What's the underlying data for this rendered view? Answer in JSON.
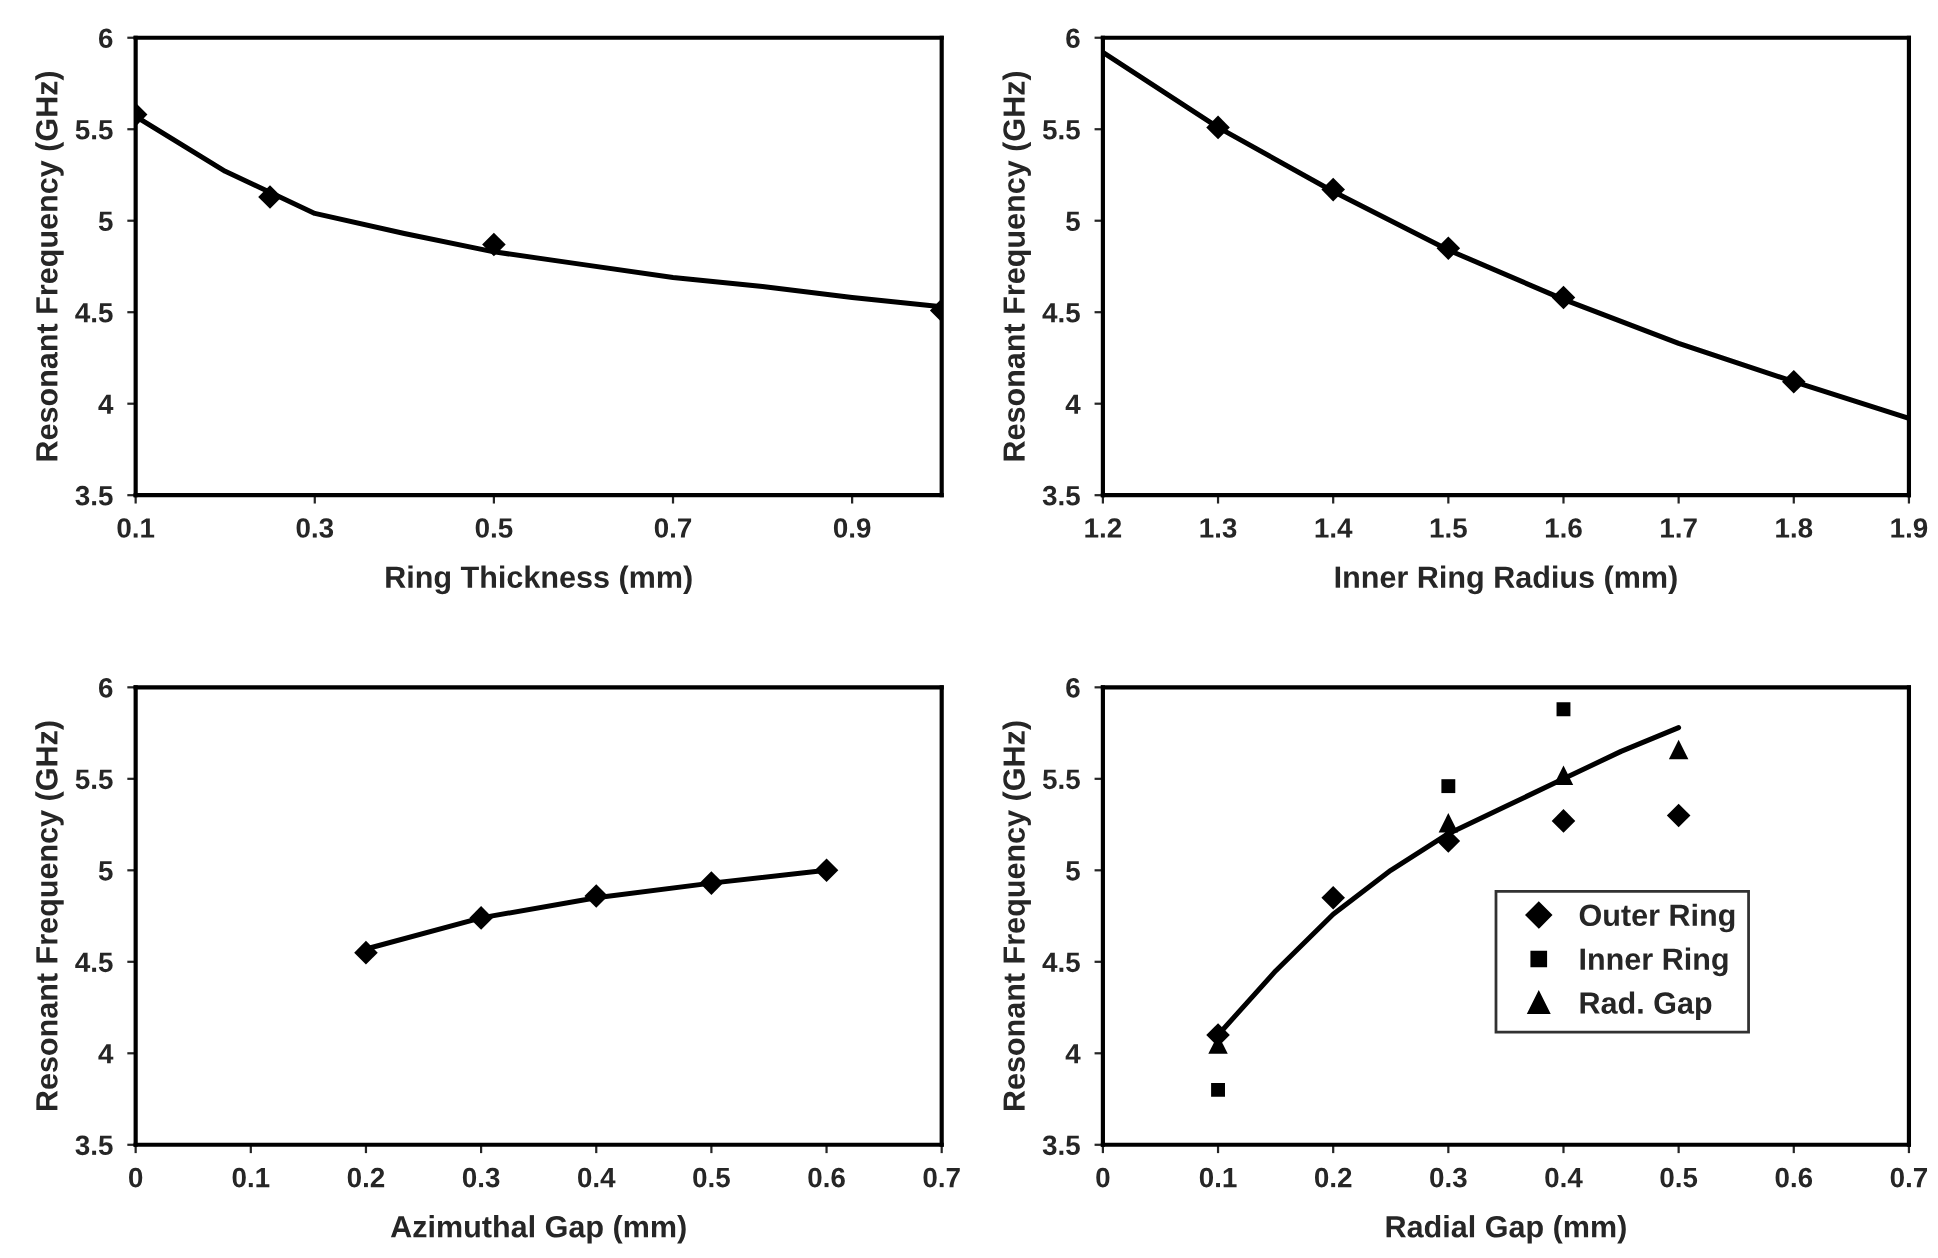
{
  "chart_data": [
    {
      "type": "scatter",
      "xlabel": "Ring Thickness (mm)",
      "ylabel": "Resonant Frequency (GHz)",
      "xlim": [
        0.1,
        1.0
      ],
      "xticks": [
        0.1,
        0.3,
        0.5,
        0.7,
        0.9
      ],
      "ylim": [
        3.5,
        6
      ],
      "yticks": [
        3.5,
        4,
        4.5,
        5,
        5.5,
        6
      ],
      "grid": false,
      "legend": false,
      "series": [
        {
          "color": "#000000",
          "marker": "diamond",
          "x": [
            0.1,
            0.25,
            0.5,
            1.0
          ],
          "values": [
            5.58,
            5.13,
            4.87,
            4.51
          ]
        },
        {
          "type": "line",
          "color": "#000000",
          "marker": "none",
          "x": [
            0.1,
            0.2,
            0.3,
            0.4,
            0.5,
            0.6,
            0.7,
            0.8,
            0.9,
            1.0
          ],
          "values": [
            5.57,
            5.27,
            5.04,
            4.93,
            4.83,
            4.76,
            4.69,
            4.64,
            4.58,
            4.53
          ]
        }
      ]
    },
    {
      "type": "scatter",
      "xlabel": "Inner Ring Radius (mm)",
      "ylabel": "Resonant Frequency (GHz)",
      "xlim": [
        1.2,
        1.9
      ],
      "xticks": [
        1.2,
        1.3,
        1.4,
        1.5,
        1.6,
        1.7,
        1.8,
        1.9
      ],
      "ylim": [
        3.5,
        6
      ],
      "yticks": [
        3.5,
        4,
        4.5,
        5,
        5.5,
        6
      ],
      "grid": false,
      "legend": false,
      "series": [
        {
          "color": "#000000",
          "marker": "diamond",
          "x": [
            1.3,
            1.4,
            1.5,
            1.6,
            1.8
          ],
          "values": [
            5.51,
            5.17,
            4.85,
            4.58,
            4.12
          ]
        },
        {
          "type": "line",
          "color": "#000000",
          "marker": "none",
          "x": [
            1.2,
            1.3,
            1.4,
            1.5,
            1.6,
            1.7,
            1.8,
            1.9
          ],
          "values": [
            5.92,
            5.51,
            5.16,
            4.84,
            4.57,
            4.33,
            4.12,
            3.92
          ]
        }
      ]
    },
    {
      "type": "scatter",
      "xlabel": "Azimuthal Gap (mm)",
      "ylabel": "Resonant Frequency (GHz)",
      "xlim": [
        0,
        0.7
      ],
      "xticks": [
        0,
        0.1,
        0.2,
        0.3,
        0.4,
        0.5,
        0.6,
        0.7
      ],
      "ylim": [
        3.5,
        6
      ],
      "yticks": [
        3.5,
        4,
        4.5,
        5,
        5.5,
        6
      ],
      "grid": false,
      "legend": false,
      "series": [
        {
          "color": "#000000",
          "marker": "diamond",
          "x": [
            0.2,
            0.3,
            0.4,
            0.5,
            0.6
          ],
          "values": [
            4.55,
            4.74,
            4.86,
            4.93,
            5.0
          ]
        },
        {
          "type": "line",
          "color": "#000000",
          "marker": "none",
          "x": [
            0.2,
            0.3,
            0.4,
            0.5,
            0.6
          ],
          "values": [
            4.57,
            4.74,
            4.85,
            4.93,
            5.0
          ]
        }
      ]
    },
    {
      "type": "scatter",
      "xlabel": "Radial Gap (mm)",
      "ylabel": "Resonant Frequency (GHz)",
      "xlim": [
        0,
        0.7
      ],
      "xticks": [
        0,
        0.1,
        0.2,
        0.3,
        0.4,
        0.5,
        0.6,
        0.7
      ],
      "ylim": [
        3.5,
        6
      ],
      "yticks": [
        3.5,
        4,
        4.5,
        5,
        5.5,
        6
      ],
      "grid": false,
      "legend": "right",
      "series": [
        {
          "name": "Outer Ring",
          "color": "#000000",
          "marker": "diamond",
          "x": [
            0.1,
            0.2,
            0.3,
            0.4,
            0.5
          ],
          "values": [
            4.1,
            4.85,
            5.16,
            5.27,
            5.3
          ]
        },
        {
          "name": "Inner Ring",
          "color": "#000000",
          "marker": "square",
          "x": [
            0.1,
            0.3,
            0.4
          ],
          "values": [
            3.8,
            5.46,
            5.88
          ]
        },
        {
          "name": "Rad. Gap",
          "color": "#000000",
          "marker": "triangle",
          "x": [
            0.1,
            0.3,
            0.4,
            0.5
          ],
          "values": [
            4.05,
            5.26,
            5.52,
            5.66
          ]
        },
        {
          "type": "line",
          "color": "#000000",
          "marker": "none",
          "x": [
            0.1,
            0.15,
            0.2,
            0.25,
            0.3,
            0.35,
            0.4,
            0.45,
            0.5
          ],
          "values": [
            4.1,
            4.45,
            4.76,
            5.0,
            5.2,
            5.35,
            5.5,
            5.65,
            5.78
          ]
        }
      ]
    }
  ]
}
